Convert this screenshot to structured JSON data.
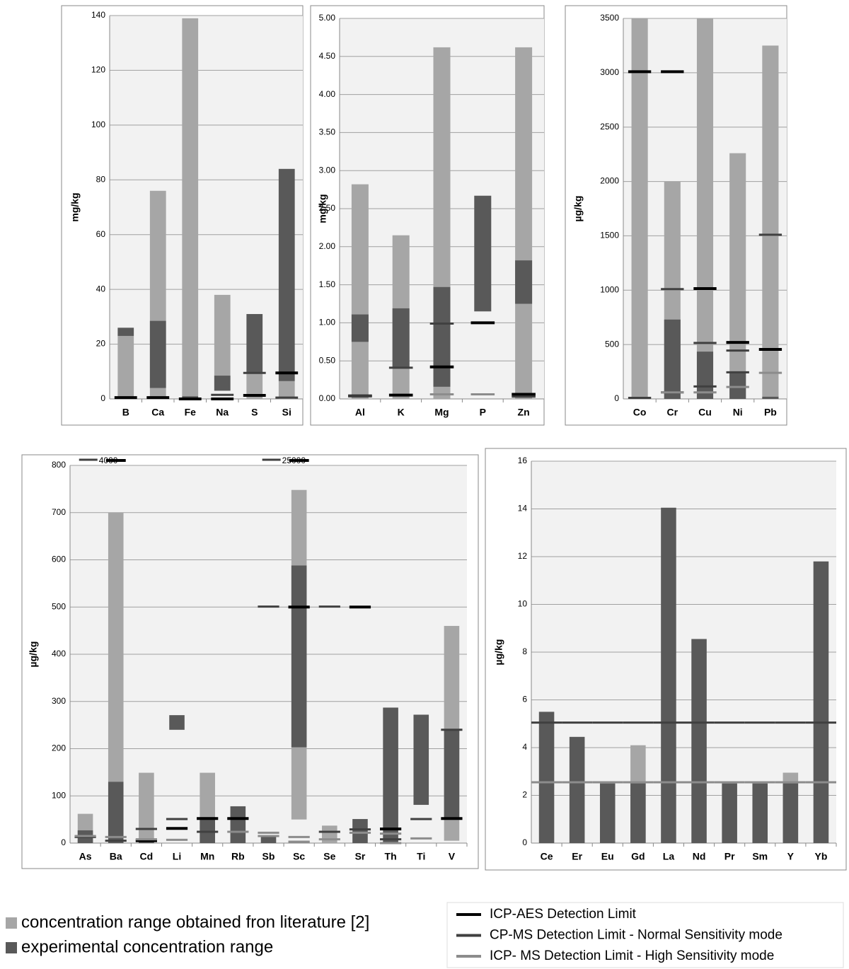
{
  "legend": {
    "ranges": [
      {
        "key": "literature",
        "name": "concentration range obtained fron literature [2]",
        "color": "#a6a6a6"
      },
      {
        "key": "experimental",
        "name": "experimental concentration range",
        "color": "#595959"
      }
    ],
    "limits": [
      {
        "kind": "aes",
        "name": "ICP-AES Detection Limit",
        "color": "#000000"
      },
      {
        "kind": "normal",
        "name": "CP-MS Detection Limit - Normal Sensitivity mode",
        "color": "#404040"
      },
      {
        "kind": "high",
        "name": "ICP- MS Detection Limit - High Sensitivity mode",
        "color": "#8c8c8c"
      }
    ]
  },
  "chart_data": [
    {
      "type": "range-bar",
      "y_label": "mg/kg",
      "categories": [
        "B",
        "Ca",
        "Fe",
        "Na",
        "S",
        "Si"
      ],
      "ylim": [
        0,
        140
      ],
      "yticks": [
        0,
        20,
        40,
        60,
        80,
        100,
        120,
        140
      ],
      "grid": true,
      "literature": {
        "low": [
          0,
          0,
          1,
          3,
          0,
          0
        ],
        "high": [
          23,
          76,
          139,
          38,
          10,
          6.5
        ]
      },
      "experimental": {
        "low": [
          23,
          4,
          0,
          3,
          9.5,
          6.5
        ],
        "high": [
          26,
          28.5,
          1,
          8.5,
          31,
          84
        ]
      },
      "limits": [
        {
          "kind": "aes",
          "values": [
            0.5,
            0.5,
            0,
            0,
            1.3,
            9.5
          ]
        },
        {
          "kind": "normal",
          "values": [
            null,
            null,
            null,
            1.5,
            9.5,
            0.5
          ]
        }
      ]
    },
    {
      "type": "range-bar",
      "y_label": "mg/kg",
      "categories": [
        "Al",
        "K",
        "Mg",
        "P",
        "Zn"
      ],
      "ylim": [
        0,
        5
      ],
      "yticks": [
        {
          "value": 0,
          "label": "0.00"
        },
        {
          "value": 0.5,
          "label": "0.50"
        },
        {
          "value": 1,
          "label": "1.00"
        },
        {
          "value": 1.5,
          "label": "1.50"
        },
        {
          "value": 2,
          "label": "2.00"
        },
        {
          "value": 2.5,
          "label": "2.50"
        },
        {
          "value": 3,
          "label": "3.00"
        },
        {
          "value": 3.5,
          "label": "3.50"
        },
        {
          "value": 4,
          "label": "4.00"
        },
        {
          "value": 4.5,
          "label": "4.50"
        },
        {
          "value": 5,
          "label": "5.00"
        }
      ],
      "grid": true,
      "literature": {
        "low": [
          0,
          0,
          0,
          null,
          0
        ],
        "high": [
          2.82,
          2.15,
          4.62,
          null,
          4.62
        ]
      },
      "experimental": {
        "low": [
          0.75,
          0.4,
          0.16,
          1.15,
          1.25
        ],
        "high": [
          1.11,
          1.19,
          1.47,
          2.67,
          1.82
        ]
      },
      "limits": [
        {
          "kind": "aes",
          "values": [
            0.04,
            0.05,
            0.42,
            1.0,
            0.06
          ]
        },
        {
          "kind": "normal",
          "values": [
            0.04,
            0.41,
            0.99,
            null,
            0.03
          ]
        },
        {
          "kind": "high",
          "values": [
            null,
            null,
            0.06,
            0.06,
            null
          ]
        }
      ]
    },
    {
      "type": "range-bar",
      "y_label": "µg/kg",
      "categories": [
        "Co",
        "Cr",
        "Cu",
        "Ni",
        "Pb"
      ],
      "ylim": [
        0,
        3500
      ],
      "yticks": [
        0,
        500,
        1000,
        1500,
        2000,
        2500,
        3000,
        3500
      ],
      "grid": true,
      "literature": {
        "low": [
          0,
          0,
          0,
          0,
          0
        ],
        "high": [
          3500,
          2000,
          3500,
          2260,
          3250
        ]
      },
      "experimental": {
        "low": [
          0,
          0,
          0,
          0,
          0
        ],
        "high": [
          10,
          730,
          435,
          250,
          20
        ]
      },
      "limits": [
        {
          "kind": "aes",
          "values": [
            3010,
            3010,
            1015,
            520,
            455
          ]
        },
        {
          "kind": "normal",
          "values": [
            10,
            1010,
            515,
            445,
            1510
          ]
        },
        {
          "kind": "normal",
          "values": [
            null,
            60,
            115,
            245,
            null
          ]
        },
        {
          "kind": "high",
          "values": [
            null,
            60,
            60,
            110,
            240
          ]
        }
      ]
    },
    {
      "type": "range-bar",
      "y_label": "µg/kg",
      "categories": [
        "As",
        "Ba",
        "Cd",
        "Li",
        "Mn",
        "Rb",
        "Sb",
        "Sc",
        "Se",
        "Sr",
        "Th",
        "Ti",
        "V"
      ],
      "ylim": [
        0,
        800
      ],
      "yticks": [
        0,
        100,
        200,
        300,
        400,
        500,
        600,
        700,
        800
      ],
      "grid": true,
      "literature": {
        "low": [
          0,
          130,
          0,
          null,
          0,
          null,
          null,
          50,
          0,
          null,
          null,
          null,
          5
        ],
        "high": [
          62,
          700,
          149,
          null,
          149,
          null,
          null,
          748,
          37,
          null,
          null,
          null,
          460
        ]
      },
      "experimental": {
        "low": [
          0,
          0,
          0,
          240,
          0,
          0,
          0,
          203,
          null,
          0,
          0,
          81,
          50
        ],
        "high": [
          27,
          130,
          8,
          271,
          55,
          78,
          15,
          588,
          null,
          51,
          287,
          272,
          240
        ]
      },
      "limits": [
        {
          "kind": "aes",
          "values": [
            null,
            null,
            5,
            31,
            52,
            52,
            null,
            500,
            null,
            500,
            30,
            null,
            52
          ]
        },
        {
          "kind": "normal",
          "values": [
            13,
            5,
            30,
            51,
            24,
            null,
            501,
            null,
            501,
            29,
            8,
            51,
            240
          ]
        },
        {
          "kind": "normal",
          "values": [
            null,
            null,
            null,
            null,
            null,
            null,
            null,
            null,
            24,
            null,
            null,
            null,
            null
          ]
        },
        {
          "kind": "high",
          "values": [
            15,
            13,
            8,
            7,
            null,
            24,
            22,
            13,
            8,
            22,
            20,
            10,
            null
          ]
        },
        {
          "kind": "high",
          "values": [
            null,
            null,
            null,
            null,
            null,
            null,
            15,
            3,
            null,
            null,
            0,
            null,
            null
          ]
        }
      ],
      "annotations": [
        {
          "category": "Ba",
          "value": 4000
        },
        {
          "category": "Sc",
          "value": 25000
        }
      ]
    },
    {
      "type": "range-bar",
      "y_label": "µg/kg",
      "categories": [
        "Ce",
        "Er",
        "Eu",
        "Gd",
        "La",
        "Nd",
        "Pr",
        "Sm",
        "Y",
        "Yb"
      ],
      "ylim": [
        0,
        16
      ],
      "yticks": [
        0,
        2,
        4,
        6,
        8,
        10,
        12,
        14,
        16
      ],
      "grid": true,
      "literature": {
        "low": [
          null,
          null,
          null,
          0,
          null,
          null,
          null,
          null,
          0,
          null
        ],
        "high": [
          null,
          null,
          null,
          4.1,
          null,
          null,
          null,
          null,
          2.95,
          null
        ]
      },
      "experimental": {
        "low": [
          0,
          0,
          0,
          0,
          0,
          0,
          0,
          0,
          0,
          0
        ],
        "high": [
          5.5,
          4.45,
          2.5,
          2.5,
          14.05,
          8.55,
          2.5,
          2.5,
          2.5,
          11.8
        ]
      },
      "limits": [
        {
          "kind": "normal",
          "values": [
            5.05,
            5.05,
            5.05,
            5.05,
            5.05,
            5.05,
            5.05,
            5.05,
            5.05,
            5.05
          ]
        },
        {
          "kind": "high",
          "values": [
            2.55,
            2.55,
            2.55,
            2.55,
            2.55,
            2.55,
            2.55,
            2.55,
            2.55,
            2.55
          ]
        }
      ]
    }
  ]
}
